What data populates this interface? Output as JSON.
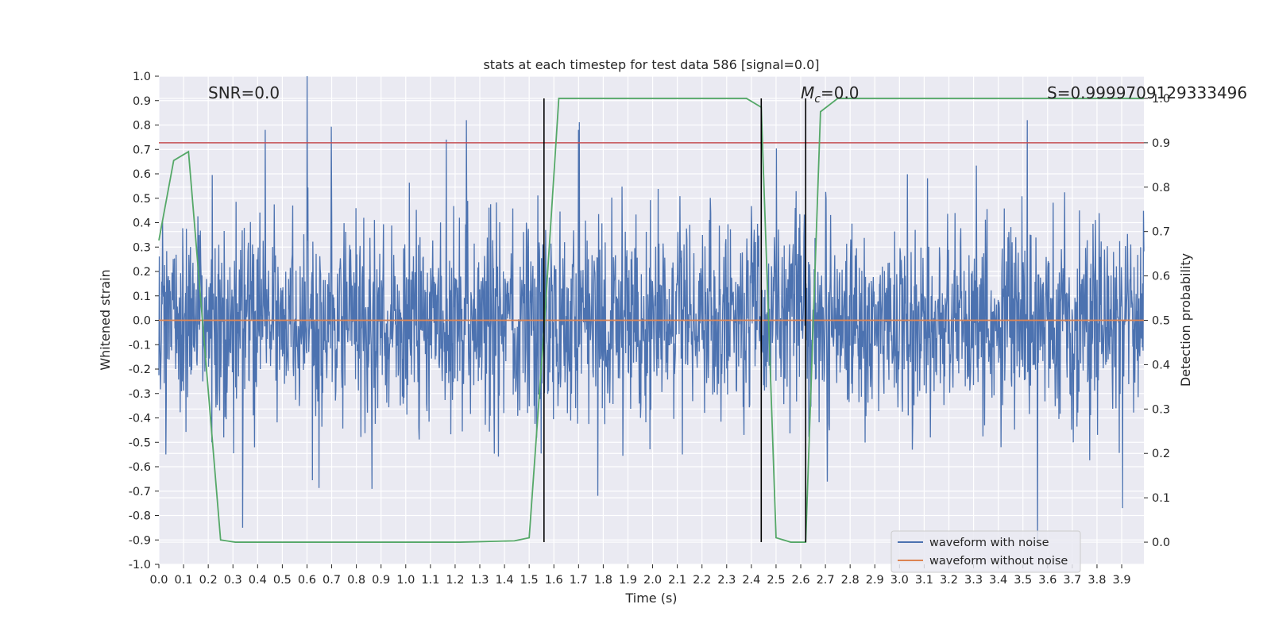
{
  "chart_data": {
    "type": "line",
    "title": "stats at each timestep for test data 586 [signal=0.0]",
    "xlabel": "Time (s)",
    "ylabel_left": "Whitened strain",
    "ylabel_right": "Detection probability",
    "xlim": [
      0.0,
      3.99
    ],
    "ylim_left": [
      -1.0,
      1.0
    ],
    "ylim_right": [
      -0.05,
      1.05
    ],
    "x_ticks": [
      "0.0",
      "0.1",
      "0.2",
      "0.3",
      "0.4",
      "0.5",
      "0.6",
      "0.7",
      "0.8",
      "0.9",
      "1.0",
      "1.1",
      "1.2",
      "1.3",
      "1.4",
      "1.5",
      "1.6",
      "1.7",
      "1.8",
      "1.9",
      "2.0",
      "2.1",
      "2.2",
      "2.3",
      "2.4",
      "2.5",
      "2.6",
      "2.7",
      "2.8",
      "2.9",
      "3.0",
      "3.1",
      "3.2",
      "3.3",
      "3.4",
      "3.5",
      "3.6",
      "3.7",
      "3.8",
      "3.9"
    ],
    "y_ticks_left": [
      "-1.0",
      "-0.9",
      "-0.8",
      "-0.7",
      "-0.6",
      "-0.5",
      "-0.4",
      "-0.3",
      "-0.2",
      "-0.1",
      "0.0",
      "0.1",
      "0.2",
      "0.3",
      "0.4",
      "0.5",
      "0.6",
      "0.7",
      "0.8",
      "0.9",
      "1.0"
    ],
    "y_ticks_right": [
      "0.0",
      "0.1",
      "0.2",
      "0.3",
      "0.4",
      "0.5",
      "0.6",
      "0.7",
      "0.8",
      "0.9",
      "1.0"
    ],
    "annotations": {
      "snr": "SNR=0.0",
      "mc_symbol": "M",
      "mc_subscript": "c",
      "mc_value": "=0.0",
      "s": "S=0.9999709129333496"
    },
    "grid": true,
    "legend_position": "lower-right",
    "series": [
      {
        "name": "waveform with noise",
        "axis": "left",
        "color": "#4c72b0",
        "style": "dense noise trace, amplitude mostly within -0.5..0.5, spikes up to 1.0 and down to -0.85",
        "notable_peaks": [
          {
            "x": 0.6,
            "y": 1.0
          },
          {
            "x": 0.43,
            "y": 0.78
          },
          {
            "x": 1.7,
            "y": 0.78
          },
          {
            "x": 3.56,
            "y": -0.9
          },
          {
            "x": 0.34,
            "y": -0.85
          }
        ]
      },
      {
        "name": "waveform without noise",
        "axis": "left",
        "color": "#dd8452",
        "x": [
          0.0,
          3.99
        ],
        "y": [
          0.0,
          0.0
        ]
      },
      {
        "name": "detection probability",
        "axis": "right",
        "color": "#55a868",
        "x": [
          0.0,
          0.06,
          0.12,
          0.25,
          0.31,
          1.22,
          1.44,
          1.5,
          1.56,
          1.62,
          2.38,
          2.44,
          2.5,
          2.56,
          2.62,
          2.68,
          2.75,
          3.99
        ],
        "y": [
          0.68,
          0.86,
          0.88,
          0.005,
          0.0,
          0.0,
          0.003,
          0.01,
          0.48,
          1.0,
          1.0,
          0.98,
          0.01,
          0.0,
          0.0,
          0.97,
          1.0,
          1.0
        ]
      }
    ],
    "threshold_line": {
      "axis": "right",
      "y": 0.9,
      "color": "#c44e52"
    },
    "marker_lines": {
      "axis": "right",
      "x": [
        1.56,
        2.44,
        2.62
      ],
      "ymin": 0.0,
      "ymax": 1.0,
      "color": "#000000"
    }
  }
}
